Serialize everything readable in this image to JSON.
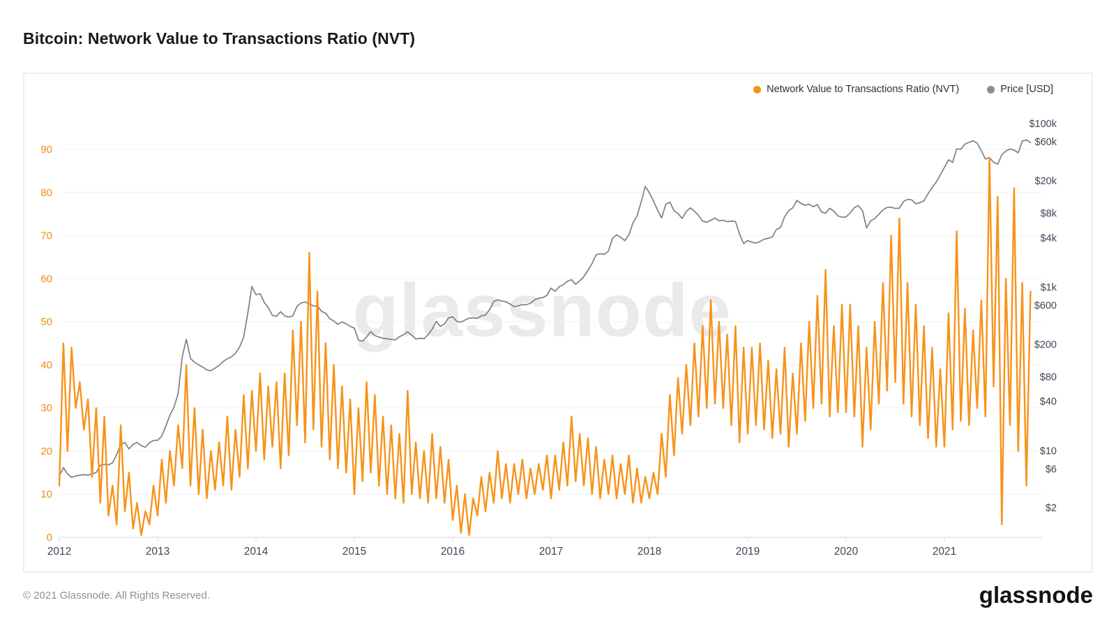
{
  "title": "Bitcoin: Network Value to Transactions Ratio (NVT)",
  "watermark": "glassnode",
  "footer": {
    "copyright": "© 2021 Glassnode. All Rights Reserved.",
    "logo": "glassnode"
  },
  "legend": [
    {
      "label": "Network Value to Transactions Ratio (NVT)",
      "color": "#f7931a"
    },
    {
      "label": "Price [USD]",
      "color": "#8c8c8c"
    }
  ],
  "colors": {
    "nvt_line": "#f7931a",
    "price_line": "#7e7f82",
    "left_tick_labels": "#ed8d14",
    "right_tick_labels": "#3e4553",
    "x_tick_labels": "#3e4553",
    "gridline": "#f1f1f4",
    "axis_line": "#e5e5e8"
  },
  "chart_data": {
    "type": "line",
    "title": "Bitcoin: Network Value to Transactions Ratio (NVT)",
    "grid": "horizontal-only",
    "legend_position": "top-right",
    "x_axis": {
      "ticks": [
        2012,
        2013,
        2014,
        2015,
        2016,
        2017,
        2018,
        2019,
        2020,
        2021
      ],
      "start": 2012,
      "end": 2022.0
    },
    "left_axis": {
      "series": "Network Value to Transactions Ratio (NVT)",
      "scale": "linear",
      "min": 0,
      "max": 90,
      "ticks": [
        0,
        10,
        20,
        30,
        40,
        50,
        60,
        70,
        80,
        90
      ]
    },
    "right_axis": {
      "series": "Price [USD]",
      "scale": "log",
      "min": 2,
      "max": 100000,
      "ticks": [
        {
          "value": 100000,
          "label": "$100k"
        },
        {
          "value": 60000,
          "label": "$60k"
        },
        {
          "value": 20000,
          "label": "$20k"
        },
        {
          "value": 8000,
          "label": "$8k"
        },
        {
          "value": 4000,
          "label": "$4k"
        },
        {
          "value": 1000,
          "label": "$1k"
        },
        {
          "value": 600,
          "label": "$600"
        },
        {
          "value": 200,
          "label": "$200"
        },
        {
          "value": 80,
          "label": "$80"
        },
        {
          "value": 40,
          "label": "$40"
        },
        {
          "value": 10,
          "label": "$10"
        },
        {
          "value": 6,
          "label": "$6"
        },
        {
          "value": 2,
          "label": "$2"
        }
      ]
    },
    "series": [
      {
        "name": "Network Value to Transactions Ratio (NVT)",
        "axis": "left",
        "color": "#f7931a",
        "x_start": 2012.0,
        "x_step": 0.0416667,
        "values": [
          12,
          45,
          20,
          44,
          30,
          36,
          25,
          32,
          14,
          30,
          8,
          28,
          5,
          12,
          3,
          26,
          6,
          15,
          2,
          8,
          0.5,
          6,
          3,
          12,
          5,
          18,
          8,
          20,
          12,
          26,
          16,
          40,
          12,
          30,
          10,
          25,
          9,
          20,
          11,
          22,
          12,
          28,
          11,
          25,
          14,
          33,
          16,
          34,
          20,
          38,
          18,
          35,
          21,
          36,
          16,
          38,
          19,
          48,
          26,
          50,
          22,
          66,
          25,
          57,
          21,
          45,
          18,
          40,
          16,
          35,
          15,
          32,
          10,
          30,
          13,
          36,
          15,
          33,
          12,
          28,
          10,
          26,
          9,
          24,
          8,
          34,
          10,
          22,
          9,
          20,
          8,
          24,
          9,
          21,
          8,
          18,
          4,
          12,
          1,
          10,
          0.5,
          9,
          5,
          14,
          6,
          15,
          8,
          20,
          9,
          17,
          8,
          17,
          10,
          18,
          9,
          16,
          10,
          17,
          11,
          19,
          9,
          19,
          11,
          22,
          12,
          28,
          13,
          24,
          12,
          23,
          10,
          21,
          9,
          18,
          10,
          19,
          9,
          17,
          10,
          19,
          8,
          16,
          8,
          14,
          9,
          15,
          10,
          24,
          14,
          33,
          19,
          37,
          24,
          40,
          26,
          45,
          28,
          49,
          30,
          55,
          31,
          50,
          30,
          47,
          26,
          49,
          22,
          44,
          24,
          44,
          26,
          45,
          25,
          41,
          23,
          39,
          24,
          44,
          21,
          38,
          24,
          45,
          27,
          50,
          30,
          56,
          31,
          62,
          28,
          49,
          29,
          54,
          29,
          54,
          28,
          49,
          21,
          44,
          25,
          50,
          31,
          59,
          34,
          70,
          36,
          74,
          31,
          59,
          28,
          54,
          26,
          49,
          23,
          44,
          21,
          39,
          21,
          52,
          25,
          71,
          27,
          53,
          26,
          48,
          30,
          55,
          28,
          88,
          35,
          79,
          3,
          60,
          26,
          81,
          20,
          59,
          12,
          57
        ]
      },
      {
        "name": "Price [USD]",
        "axis": "right",
        "color": "#7e7f82",
        "x_start": 2012.0,
        "x_step": 0.0416667,
        "values": [
          4.9,
          6.2,
          5.2,
          4.7,
          4.9,
          5.0,
          5.1,
          5.0,
          5.2,
          5.4,
          6.6,
          6.8,
          6.7,
          7.1,
          9.0,
          11.8,
          12.6,
          10.5,
          11.9,
          12.6,
          11.5,
          11.0,
          12.5,
          13.3,
          13.4,
          15,
          20,
          27,
          34,
          50,
          140,
          230,
          135,
          120,
          112,
          105,
          97,
          95,
          102,
          110,
          123,
          133,
          140,
          155,
          185,
          245,
          480,
          1020,
          805,
          830,
          650,
          560,
          450,
          440,
          500,
          445,
          430,
          445,
          580,
          640,
          655,
          620,
          590,
          585,
          505,
          480,
          410,
          385,
          350,
          375,
          355,
          330,
          315,
          225,
          218,
          245,
          285,
          255,
          245,
          237,
          233,
          229,
          227,
          247,
          262,
          283,
          258,
          232,
          236,
          234,
          262,
          305,
          380,
          330,
          355,
          420,
          434,
          380,
          373,
          395,
          416,
          420,
          415,
          445,
          455,
          530,
          665,
          700,
          675,
          660,
          620,
          575,
          590,
          610,
          608,
          635,
          700,
          730,
          745,
          790,
          970,
          890,
          1010,
          1070,
          1180,
          1230,
          1080,
          1190,
          1340,
          1600,
          1940,
          2480,
          2560,
          2520,
          2750,
          3950,
          4350,
          4050,
          3700,
          4350,
          6100,
          7400,
          11000,
          17000,
          14200,
          11300,
          8700,
          7000,
          10300,
          10900,
          8600,
          7900,
          6900,
          8400,
          9300,
          8500,
          7500,
          6400,
          6200,
          6550,
          7000,
          6450,
          6550,
          6300,
          6400,
          6350,
          4450,
          3400,
          3700,
          3550,
          3450,
          3600,
          3850,
          3950,
          4100,
          5050,
          5350,
          7250,
          8600,
          9300,
          11500,
          10500,
          10000,
          10300,
          9600,
          10200,
          8300,
          8000,
          9200,
          8500,
          7400,
          7150,
          7200,
          8050,
          9350,
          9900,
          8600,
          5300,
          6450,
          6900,
          7750,
          8800,
          9400,
          9450,
          9150,
          9200,
          11100,
          11800,
          11650,
          10450,
          10750,
          11350,
          13800,
          16500,
          19200,
          23500,
          29000,
          36000,
          33500,
          49000,
          48500,
          56000,
          58800,
          61500,
          57500,
          46500,
          36700,
          38300,
          33500,
          31800,
          41500,
          46000,
          48800,
          47300,
          43800,
          61000,
          63000,
          58500
        ]
      }
    ]
  }
}
